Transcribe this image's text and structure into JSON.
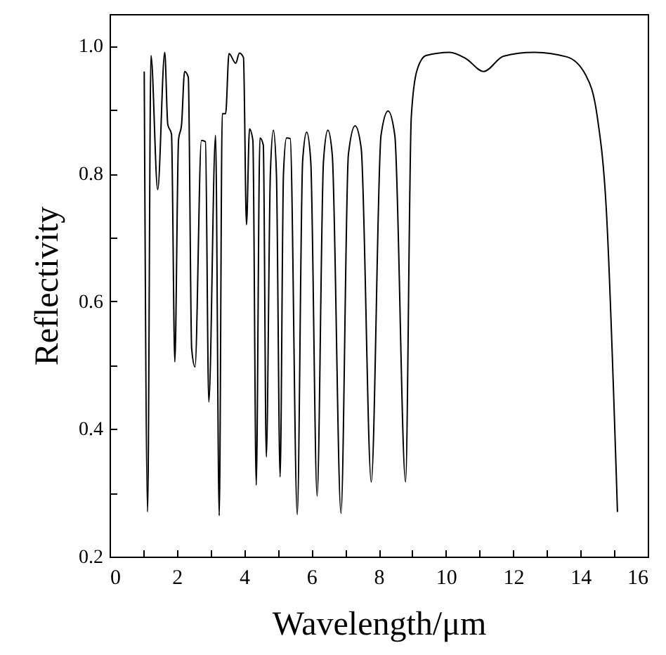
{
  "chart_data": {
    "type": "line",
    "xlabel": "Wavelength/μm",
    "ylabel": "Reflectivity",
    "xlim": [
      0,
      16
    ],
    "ylim": [
      0.2,
      1.05
    ],
    "xticks": [
      0,
      {
        "value": 1,
        "label": null
      },
      2,
      {
        "value": 3,
        "label": null
      },
      4,
      {
        "value": 5,
        "label": null
      },
      6,
      {
        "value": 7,
        "label": null
      },
      8,
      {
        "value": 9,
        "label": null
      },
      10,
      {
        "value": 11,
        "label": null
      },
      12,
      {
        "value": 13,
        "label": null
      },
      14,
      {
        "value": 15,
        "label": null
      },
      16
    ],
    "yticks": [
      0.2,
      {
        "value": 0.3,
        "label": null
      },
      0.4,
      {
        "value": 0.5,
        "label": null
      },
      0.6,
      {
        "value": 0.7,
        "label": null
      },
      0.8,
      {
        "value": 0.9,
        "label": null
      },
      {
        "value": 1.0,
        "label": "1.0"
      }
    ],
    "grid": false,
    "marker": "none",
    "line_style": "solid",
    "series": [
      {
        "color": "#000000",
        "x": [
          1.03,
          1.13,
          1.23,
          1.43,
          1.64,
          1.73,
          1.84,
          1.94,
          2.05,
          2.14,
          2.23,
          2.34,
          2.44,
          2.54,
          2.73,
          2.85,
          2.95,
          3.15,
          3.26,
          3.35,
          3.45,
          3.55,
          3.75,
          3.86,
          3.98,
          4.07,
          4.16,
          4.26,
          4.36,
          4.47,
          4.57,
          4.66,
          4.78,
          4.87,
          4.96,
          5.07,
          5.17,
          5.26,
          5.37,
          5.58,
          5.74,
          5.86,
          5.98,
          6.17,
          6.36,
          6.49,
          6.62,
          6.88,
          7.1,
          7.3,
          7.48,
          7.78,
          8.07,
          8.28,
          8.48,
          8.8,
          8.97,
          9.14,
          9.41,
          10.11,
          10.6,
          11.12,
          11.71,
          12.61,
          13.59,
          14.15,
          14.5,
          14.77,
          15.1
        ],
        "values": [
          0.96,
          0.27,
          0.985,
          0.775,
          0.99,
          0.877,
          0.862,
          0.505,
          0.853,
          0.877,
          0.96,
          0.951,
          0.526,
          0.497,
          0.852,
          0.85,
          0.442,
          0.86,
          0.264,
          0.894,
          0.894,
          0.988,
          0.973,
          0.989,
          0.982,
          0.72,
          0.87,
          0.852,
          0.312,
          0.856,
          0.845,
          0.356,
          0.8,
          0.868,
          0.8,
          0.325,
          0.8,
          0.856,
          0.855,
          0.266,
          0.82,
          0.865,
          0.82,
          0.295,
          0.82,
          0.868,
          0.83,
          0.268,
          0.83,
          0.875,
          0.84,
          0.317,
          0.86,
          0.898,
          0.86,
          0.317,
          0.889,
          0.962,
          0.985,
          0.99,
          0.98,
          0.96,
          0.984,
          0.99,
          0.983,
          0.955,
          0.889,
          0.742,
          0.27
        ]
      }
    ]
  }
}
